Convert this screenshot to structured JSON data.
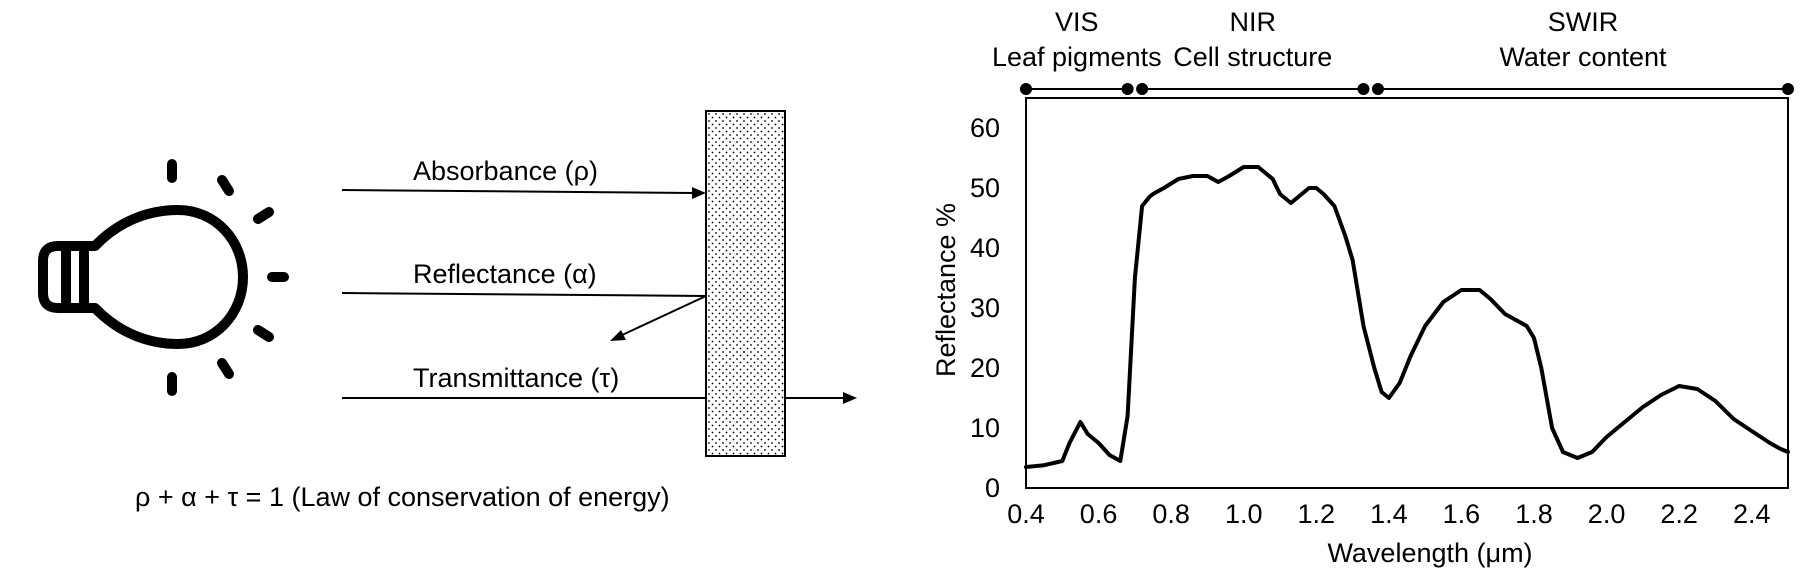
{
  "diagram": {
    "labels": {
      "absorbance": "Absorbance (ρ)",
      "reflectance": "Reflectance (α)",
      "transmittance": "Transmittance (τ)",
      "law": "ρ + α + τ = 1 (Law of conservation of energy)"
    },
    "icons": {
      "light_source": "lightbulb-icon"
    }
  },
  "chart_data": {
    "type": "line",
    "xlabel": "Wavelength (μm)",
    "ylabel": "Reflectance %",
    "xlim": [
      0.4,
      2.5
    ],
    "ylim": [
      0,
      65
    ],
    "xticks": [
      "0.4",
      "0.6",
      "0.8",
      "1.0",
      "1.2",
      "1.4",
      "1.6",
      "1.8",
      "2.0",
      "2.2",
      "2.4"
    ],
    "yticks": [
      "0",
      "10",
      "20",
      "30",
      "40",
      "50",
      "60"
    ],
    "grid": false,
    "regions": [
      {
        "name": "VIS",
        "description": "Leaf pigments",
        "range": [
          0.4,
          0.68
        ]
      },
      {
        "name": "NIR",
        "description": "Cell structure",
        "range": [
          0.72,
          1.33
        ]
      },
      {
        "name": "SWIR",
        "description": "Water content",
        "range": [
          1.37,
          2.5
        ]
      }
    ],
    "series": [
      {
        "x": [
          0.4,
          0.45,
          0.5,
          0.52,
          0.55,
          0.57,
          0.6,
          0.63,
          0.66,
          0.68,
          0.7,
          0.72,
          0.74,
          0.75,
          0.78,
          0.82,
          0.86,
          0.9,
          0.93,
          0.96,
          1.0,
          1.04,
          1.08,
          1.1,
          1.13,
          1.16,
          1.18,
          1.2,
          1.22,
          1.25,
          1.28,
          1.3,
          1.33,
          1.36,
          1.38,
          1.4,
          1.43,
          1.46,
          1.5,
          1.55,
          1.6,
          1.65,
          1.68,
          1.72,
          1.75,
          1.78,
          1.8,
          1.82,
          1.85,
          1.88,
          1.92,
          1.96,
          2.0,
          2.05,
          2.1,
          2.15,
          2.2,
          2.25,
          2.3,
          2.35,
          2.4,
          2.45,
          2.48,
          2.5
        ],
        "y": [
          3.5,
          3.8,
          4.5,
          7.5,
          11,
          9,
          7.5,
          5.5,
          4.5,
          12,
          35,
          47,
          48.5,
          49,
          50,
          51.5,
          52,
          52,
          51,
          52,
          53.5,
          53.5,
          51.5,
          49,
          47.5,
          49,
          50,
          50,
          49,
          47,
          42,
          38,
          27,
          20,
          16,
          15,
          17.5,
          22,
          27,
          31,
          33,
          33,
          31.5,
          29,
          28,
          27,
          25,
          20,
          10,
          6,
          5,
          6,
          8.5,
          11,
          13.5,
          15.5,
          17,
          16.5,
          14.5,
          11.5,
          9.5,
          7.5,
          6.5,
          6
        ]
      }
    ]
  }
}
